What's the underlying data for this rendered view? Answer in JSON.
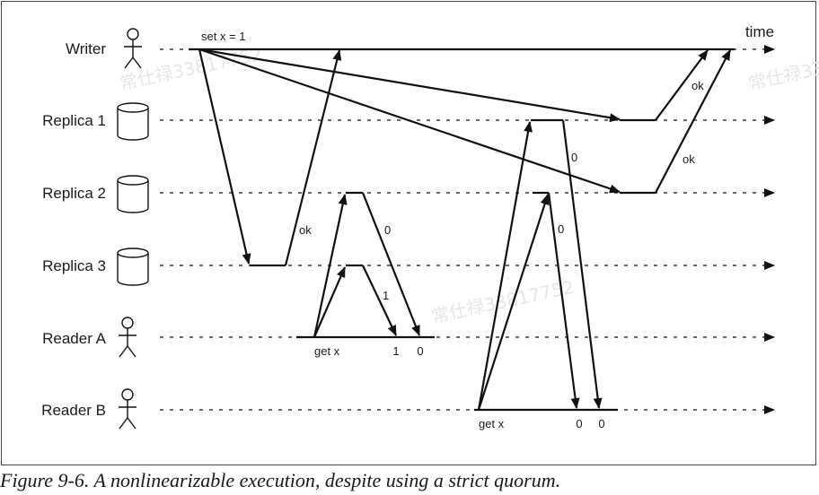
{
  "lanes": [
    {
      "label": "Writer",
      "kind": "client",
      "icon": "person-icon"
    },
    {
      "label": "Replica 1",
      "kind": "replica",
      "icon": "database-icon"
    },
    {
      "label": "Replica 2",
      "kind": "replica",
      "icon": "database-icon"
    },
    {
      "label": "Replica 3",
      "kind": "replica",
      "icon": "database-icon"
    },
    {
      "label": "Reader A",
      "kind": "client",
      "icon": "person-icon"
    },
    {
      "label": "Reader B",
      "kind": "client",
      "icon": "person-icon"
    }
  ],
  "time_label": "time",
  "operations": {
    "write": "set x = 1",
    "read_a": "get x",
    "read_b": "get x"
  },
  "responses": {
    "replica1_to_writer": "ok",
    "replica2_to_writer": "ok",
    "replica3_to_writer": "ok",
    "replica2_to_reader_a": "0",
    "replica3_to_reader_a": "1",
    "replica1_to_reader_b": "0",
    "replica2_to_reader_b": "0"
  },
  "reader_results": {
    "reader_a": [
      "1",
      "0"
    ],
    "reader_b": [
      "0",
      "0"
    ]
  },
  "watermark": "常仕禄33817752",
  "caption": "Figure 9-6. A nonlinearizable execution, despite using a strict quorum."
}
